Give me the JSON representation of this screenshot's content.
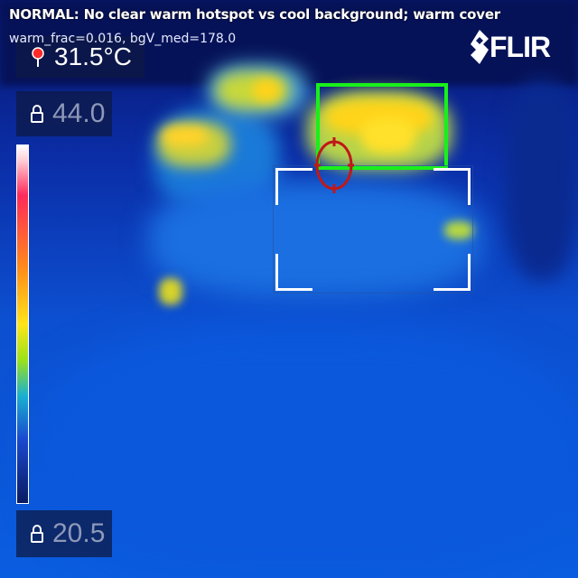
{
  "overlay": {
    "verdict": "NORMAL: No clear warm hotspot vs cool background; warm cover",
    "metrics": "warm_frac=0.016, bgV_med=178.0"
  },
  "spot": {
    "value": "31.5°C",
    "icon": "pin-icon"
  },
  "scale": {
    "max": "44.0",
    "min": "20.5",
    "lock_icon": "lock-icon"
  },
  "brand": {
    "logo_text": "FLIR"
  },
  "colors": {
    "detection_box": "#18f01a",
    "crosshair": "#c01818",
    "spot_marker": "#ff2a2a"
  }
}
